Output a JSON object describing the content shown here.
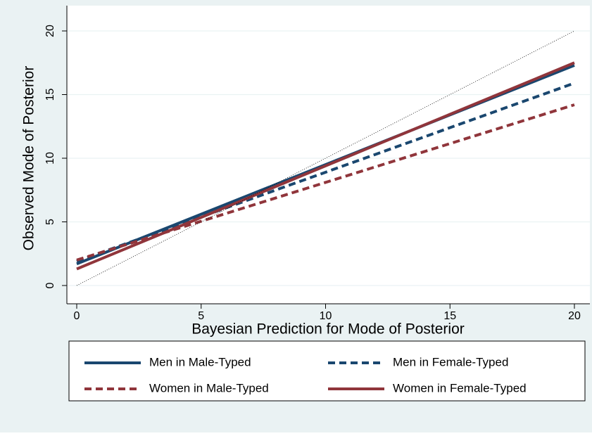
{
  "chart_data": {
    "type": "line",
    "x_label": "Bayesian Prediction for Mode of Posterior",
    "y_label": "Observed Mode of Posterior",
    "x": [
      0,
      20
    ],
    "series": [
      {
        "name": "Men in Male-Typed",
        "color": "#1a476f",
        "dash": false,
        "values": [
          1.7,
          17.3
        ]
      },
      {
        "name": "Men in Female-Typed",
        "color": "#1a476f",
        "dash": true,
        "values": [
          1.9,
          15.9
        ]
      },
      {
        "name": "Women in Male-Typed",
        "color": "#90353b",
        "dash": true,
        "values": [
          2.0,
          14.2
        ]
      },
      {
        "name": "Women in Female-Typed",
        "color": "#90353b",
        "dash": false,
        "values": [
          1.3,
          17.5
        ]
      },
      {
        "color": "#000000",
        "dotted": true,
        "values": [
          0,
          20
        ]
      }
    ],
    "xlim": [
      0,
      20
    ],
    "xticks": [
      0,
      5,
      10,
      15,
      20
    ],
    "ylim": [
      0,
      20
    ],
    "yticks": [
      0,
      5,
      10,
      15,
      20
    ],
    "grid": true
  }
}
